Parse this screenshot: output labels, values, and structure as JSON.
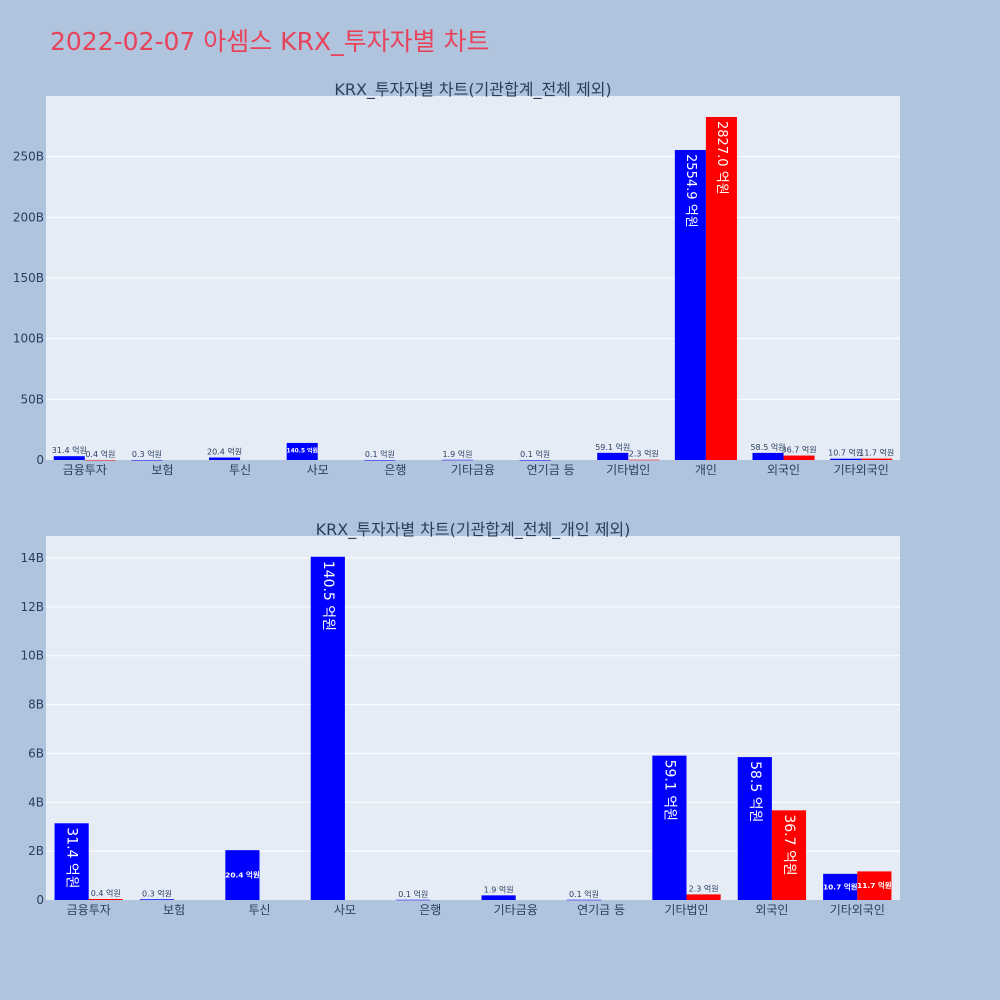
{
  "page": {
    "title": "2022-02-07 아셈스 KRX_투자자별 차트"
  },
  "colors": {
    "background": "#b0c4de",
    "plot_bg": "#e5ecf6",
    "title": "#e8435a",
    "series_a": "#0000ff",
    "series_b": "#ff0000"
  },
  "chart_data": [
    {
      "type": "bar",
      "title": "KRX_투자자별 차트(기관합계_전체 제외)",
      "categories": [
        "금융투자",
        "보험",
        "투신",
        "사모",
        "은행",
        "기타금융",
        "연기금 등",
        "기타법인",
        "개인",
        "외국인",
        "기타외국인"
      ],
      "yticks": [
        "0",
        "50B",
        "100B",
        "150B",
        "200B",
        "250B"
      ],
      "ylim": [
        0,
        300
      ],
      "tick_step": 50,
      "series": [
        {
          "values": [
            3.14,
            0.03,
            2.04,
            14.05,
            0.01,
            0.19,
            0.01,
            5.91,
            255.49,
            5.85,
            1.07
          ],
          "labels": [
            "31.4 억원",
            "0.3 억원",
            "20.4 억원",
            "140.5 억원",
            "0.1 억원",
            "1.9 억원",
            "0.1 억원",
            "59.1 억원",
            "2554.9 억원",
            "58.5 억원",
            "10.7 억원"
          ]
        },
        {
          "values": [
            0.04,
            null,
            null,
            null,
            null,
            null,
            null,
            0.23,
            282.7,
            3.67,
            1.17
          ],
          "labels": [
            "0.4 억원",
            "",
            "",
            "",
            "",
            "",
            "",
            "2.3 억원",
            "2827.0 억원",
            "36.7 억원",
            "11.7 억원"
          ]
        }
      ]
    },
    {
      "type": "bar",
      "title": "KRX_투자자별 차트(기관합계_전체_개인 제외)",
      "categories": [
        "금융투자",
        "보험",
        "투신",
        "사모",
        "은행",
        "기타금융",
        "연기금 등",
        "기타법인",
        "외국인",
        "기타외국인"
      ],
      "yticks": [
        "0",
        "2B",
        "4B",
        "6B",
        "8B",
        "10B",
        "12B",
        "14B"
      ],
      "ylim": [
        0,
        14.9
      ],
      "tick_step": 2,
      "series": [
        {
          "values": [
            3.14,
            0.03,
            2.04,
            14.05,
            0.01,
            0.19,
            0.01,
            5.91,
            5.85,
            1.07
          ],
          "labels": [
            "31.4 억원",
            "0.3 억원",
            "20.4 억원",
            "140.5 억원",
            "0.1 억원",
            "1.9 억원",
            "0.1 억원",
            "59.1 억원",
            "58.5 억원",
            "10.7 억원"
          ]
        },
        {
          "values": [
            0.04,
            null,
            null,
            null,
            null,
            null,
            null,
            0.23,
            3.67,
            1.17
          ],
          "labels": [
            "0.4 억원",
            "",
            "",
            "",
            "",
            "",
            "",
            "2.3 억원",
            "36.7 억원",
            "11.7 억원"
          ]
        }
      ]
    }
  ]
}
